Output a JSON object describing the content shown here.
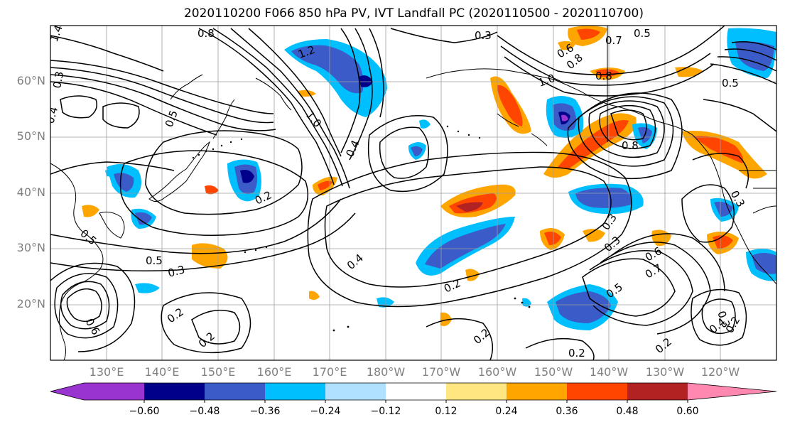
{
  "title": "2020110200 F066 850 hPa PV, IVT Landfall PC (2020110500 - 2020110700)",
  "lat_labels": [
    "60°N",
    "50°N",
    "40°N",
    "30°N",
    "20°N"
  ],
  "lon_labels": [
    "130°E",
    "140°E",
    "150°E",
    "160°E",
    "170°E",
    "180°W",
    "170°W",
    "160°W",
    "150°W",
    "140°W",
    "130°W",
    "120°W"
  ],
  "colorbar": {
    "ticks": [
      "−0.60",
      "−0.48",
      "−0.36",
      "−0.24",
      "−0.12",
      "0.12",
      "0.24",
      "0.36",
      "0.48",
      "0.60"
    ],
    "colors": [
      "#9a34d0",
      "#00008b",
      "#3a5bc8",
      "#00bfff",
      "#b0e2ff",
      "#ffffff",
      "#ffe680",
      "#ffa500",
      "#ff4500",
      "#b22222",
      "#ff88b0"
    ]
  },
  "contour_labels": [
    "1.4",
    "0.3",
    "0.4",
    "0.5",
    "0.8",
    "1.2",
    "1.0",
    "0.4",
    "0.2",
    "0.5",
    "0.3",
    "0.5",
    "0.6",
    "0.2",
    "0.2",
    "0.4",
    "0.2",
    "0.2",
    "0.3",
    "0.6",
    "0.8",
    "0.7",
    "1.0",
    "0.8",
    "0.5",
    "0.8",
    "0.3",
    "0.3",
    "0.5",
    "0.6",
    "0.7",
    "0.5",
    "0.2",
    "0.3",
    "0.4",
    "0.2",
    "0.3",
    "0.2"
  ]
}
